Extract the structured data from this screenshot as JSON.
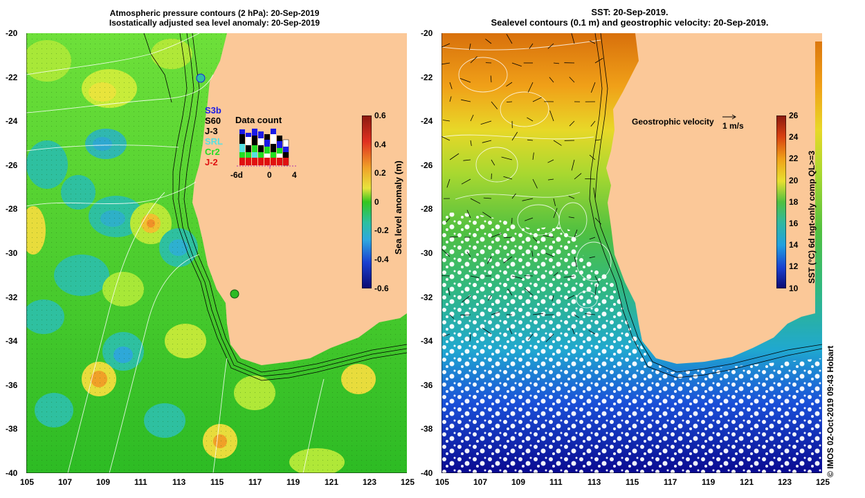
{
  "left_panel": {
    "title_line1": "Atmospheric pressure contours (2 hPa): 20-Sep-2019",
    "title_line2": "Isostatically adjusted sea level anomaly: 20-Sep-2019",
    "y_ticks": [
      "-20",
      "-22",
      "-24",
      "-26",
      "-28",
      "-30",
      "-32",
      "-34",
      "-36",
      "-38",
      "-40"
    ],
    "x_ticks": [
      "105",
      "107",
      "109",
      "111",
      "113",
      "115",
      "117",
      "119",
      "121",
      "123",
      "125"
    ],
    "colorbar": {
      "label": "Sea level anomaly (m)",
      "ticks": [
        "0.6",
        "0.4",
        "0.2",
        "0",
        "-0.2",
        "-0.4",
        "-0.6"
      ]
    },
    "satellites": [
      {
        "name": "S3b",
        "color": "#1a1ae6"
      },
      {
        "name": "S60",
        "color": "#000000"
      },
      {
        "name": "J-3",
        "color": "#000000"
      },
      {
        "name": "SRL",
        "color": "#55e0e0"
      },
      {
        "name": "Cr2",
        "color": "#22dd22"
      },
      {
        "name": "J-2",
        "color": "#e01010"
      }
    ],
    "data_count": {
      "title": "Data count",
      "x_labels": [
        "-6d",
        "0",
        "4"
      ]
    }
  },
  "right_panel": {
    "title_line1": "SST: 20-Sep-2019.",
    "title_line2": "Sealevel contours (0.1 m) and geostrophic velocity: 20-Sep-2019.",
    "y_ticks": [
      "-20",
      "-22",
      "-24",
      "-26",
      "-28",
      "-30",
      "-32",
      "-34",
      "-36",
      "-38",
      "-40"
    ],
    "x_ticks": [
      "105",
      "107",
      "109",
      "111",
      "113",
      "115",
      "117",
      "119",
      "121",
      "123",
      "125"
    ],
    "velocity_label": "Geostrophic velocity",
    "velocity_scale": "1 m/s",
    "colorbar": {
      "label": "SST (°C) 6d ngt-only comp QL>=3",
      "ticks": [
        "26",
        "24",
        "22",
        "20",
        "18",
        "16",
        "14",
        "12",
        "10"
      ]
    },
    "credit": "© IMOS 02-Oct-2019 09:43 Hobart"
  },
  "colors": {
    "land": "#fbc898",
    "sla_bg": "#33c61f",
    "sst_warm": "#e88a10",
    "sst_cold": "#0a1a9e"
  }
}
